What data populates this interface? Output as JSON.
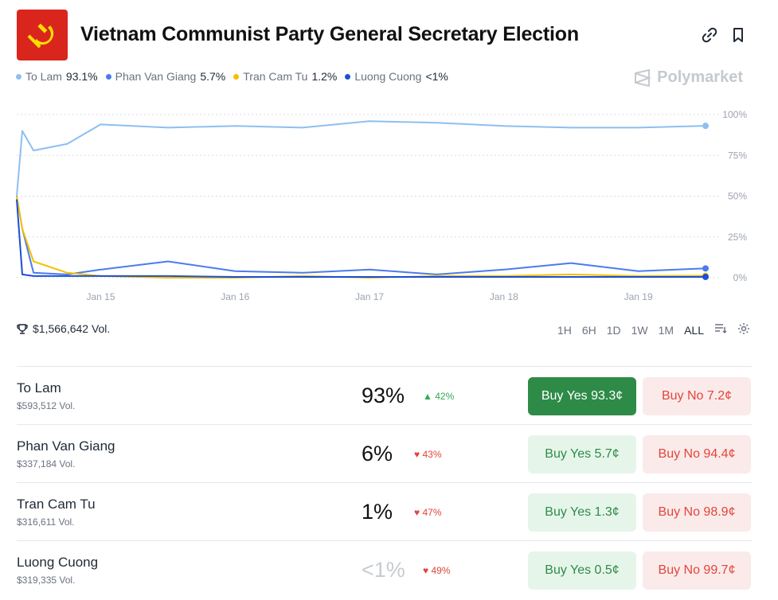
{
  "title": "Vietnam Communist Party General Secretary Election",
  "brand": "Polymarket",
  "legend": [
    {
      "name": "To Lam",
      "value": "93.1%",
      "color": "#8dbff1"
    },
    {
      "name": "Phan Van Giang",
      "value": "5.7%",
      "color": "#4b7bec"
    },
    {
      "name": "Tran Cam Tu",
      "value": "1.2%",
      "color": "#f5c000"
    },
    {
      "name": "Luong Cuong",
      "value": "<1%",
      "color": "#1d4ed8"
    }
  ],
  "volume": "$1,566,642 Vol.",
  "ranges": [
    "1H",
    "6H",
    "1D",
    "1W",
    "1M",
    "ALL"
  ],
  "active_range": "ALL",
  "rows": [
    {
      "name": "To Lam",
      "vol": "$593,512 Vol.",
      "pct": "93%",
      "chg": "42%",
      "dir": "up",
      "yes": "Buy Yes 93.3¢",
      "no": "Buy No 7.2¢"
    },
    {
      "name": "Phan Van Giang",
      "vol": "$337,184 Vol.",
      "pct": "6%",
      "chg": "43%",
      "dir": "down",
      "yes": "Buy Yes 5.7¢",
      "no": "Buy No 94.4¢"
    },
    {
      "name": "Tran Cam Tu",
      "vol": "$316,611 Vol.",
      "pct": "1%",
      "chg": "47%",
      "dir": "down",
      "yes": "Buy Yes 1.3¢",
      "no": "Buy No 98.9¢"
    },
    {
      "name": "Luong Cuong",
      "vol": "$319,335 Vol.",
      "pct": "<1%",
      "chg": "49%",
      "dir": "down",
      "yes": "Buy Yes 0.5¢",
      "no": "Buy No 99.7¢"
    }
  ],
  "chart_data": {
    "type": "line",
    "x": [
      "Jan 14 09:00",
      "Jan 14 10:00",
      "Jan 14 12:00",
      "Jan 14 18:00",
      "Jan 15 00:00",
      "Jan 15 12:00",
      "Jan 16 00:00",
      "Jan 16 12:00",
      "Jan 17 00:00",
      "Jan 17 12:00",
      "Jan 18 00:00",
      "Jan 18 12:00",
      "Jan 19 00:00",
      "Jan 19 12:00"
    ],
    "x_ticks": [
      "Jan 15",
      "Jan 16",
      "Jan 17",
      "Jan 18",
      "Jan 19"
    ],
    "y_ticks": [
      "0%",
      "25%",
      "50%",
      "75%",
      "100%"
    ],
    "ylim": [
      0,
      100
    ],
    "grid": true,
    "series": [
      {
        "name": "To Lam",
        "values": [
          50,
          90,
          78,
          82,
          94,
          92,
          93,
          92,
          96,
          95,
          93,
          92,
          92,
          93.1
        ]
      },
      {
        "name": "Phan Van Giang",
        "values": [
          50,
          30,
          3,
          2,
          5,
          10,
          4,
          3,
          5,
          2,
          5,
          9,
          4,
          5.7
        ]
      },
      {
        "name": "Tran Cam Tu",
        "values": [
          50,
          30,
          10,
          3,
          1,
          0,
          0,
          1,
          0,
          1,
          1,
          2,
          1,
          1.2
        ]
      },
      {
        "name": "Luong Cuong",
        "values": [
          48,
          2,
          1,
          1,
          1,
          1,
          0.5,
          0.5,
          0.5,
          0.5,
          0.5,
          0.5,
          0.5,
          0.5
        ]
      }
    ]
  }
}
